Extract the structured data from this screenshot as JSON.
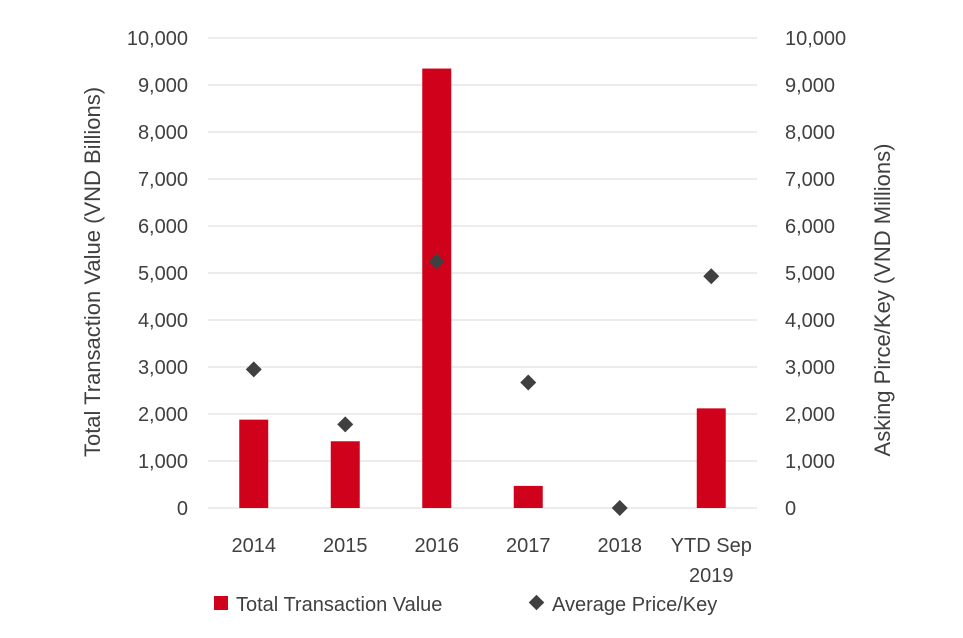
{
  "chart_data": {
    "type": "bar",
    "categories": [
      "2014",
      "2015",
      "2016",
      "2017",
      "2018",
      "YTD Sep 2019"
    ],
    "category_lines": [
      [
        "2014"
      ],
      [
        "2015"
      ],
      [
        "2016"
      ],
      [
        "2017"
      ],
      [
        "2018"
      ],
      [
        "YTD Sep",
        "2019"
      ]
    ],
    "series": [
      {
        "name": "Total Transaction Value",
        "type": "bar",
        "axis": "left",
        "color": "#d0021b",
        "values": [
          1880,
          1420,
          9350,
          470,
          0,
          2120
        ]
      },
      {
        "name": "Average Price/Key",
        "type": "scatter",
        "marker": "diamond",
        "axis": "right",
        "color": "#404040",
        "values": [
          2950,
          1780,
          5250,
          2670,
          0,
          4930
        ]
      }
    ],
    "ylabel": "Total Transaction Value (VND Billions)",
    "y2label": "Asking Pirce/Key (VND Millions)",
    "ylim": [
      0,
      10000
    ],
    "y2lim": [
      0,
      10000
    ],
    "yticks": [
      "0",
      "1,000",
      "2,000",
      "3,000",
      "4,000",
      "5,000",
      "6,000",
      "7,000",
      "8,000",
      "9,000",
      "10,000"
    ],
    "y2ticks": [
      "0",
      "1,000",
      "2,000",
      "3,000",
      "4,000",
      "5,000",
      "6,000",
      "7,000",
      "8,000",
      "9,000",
      "10,000"
    ],
    "grid": true,
    "legend_position": "bottom"
  }
}
